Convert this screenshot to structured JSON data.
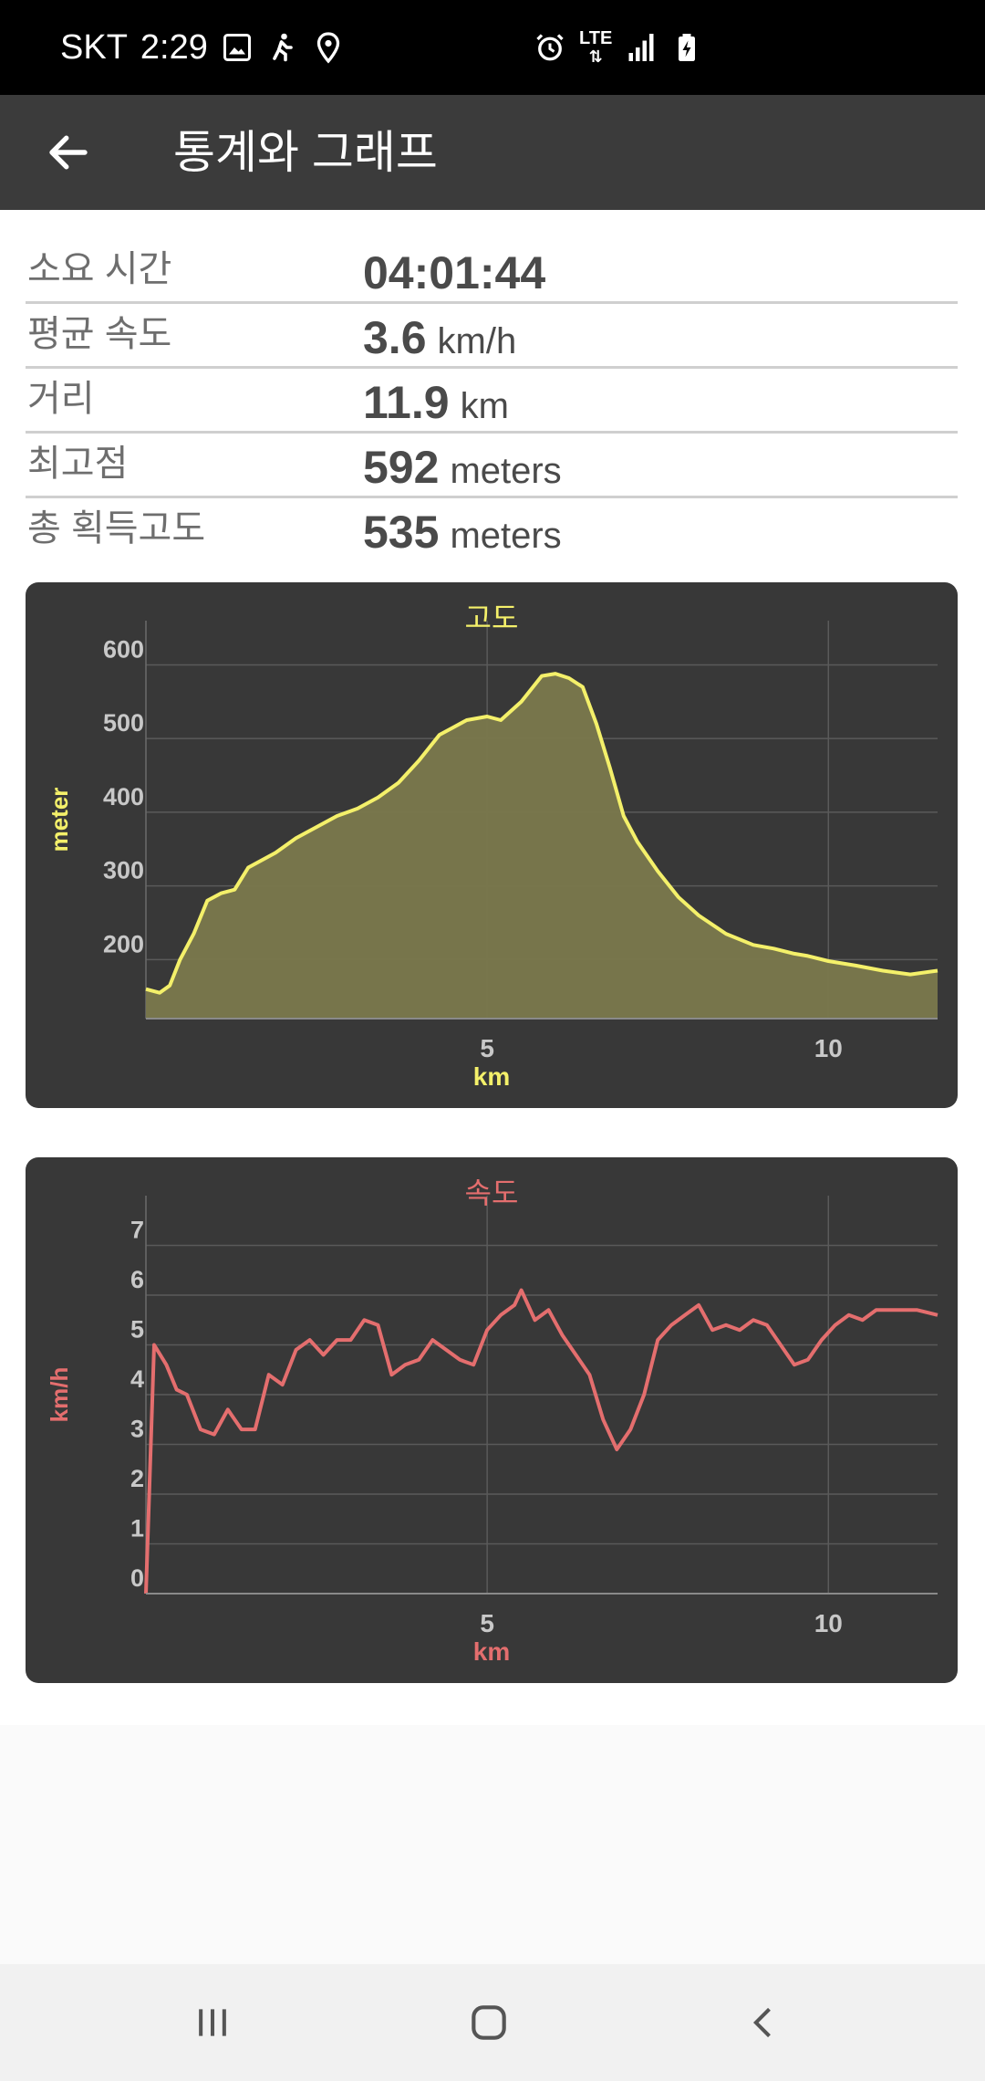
{
  "status_bar": {
    "carrier": "SKT",
    "time": "2:29",
    "network": "LTE",
    "left_icons": [
      "gallery-icon",
      "hiking-icon",
      "location-pin-icon"
    ],
    "right_icons": [
      "alarm-icon",
      "lte-icon",
      "signal-icon",
      "battery-charging-icon"
    ]
  },
  "app_bar": {
    "title": "통계와 그래프",
    "back_icon": "arrow-left-icon"
  },
  "stats": [
    {
      "label": "소요 시간",
      "value": "04:01:44",
      "unit": ""
    },
    {
      "label": "평균 속도",
      "value": "3.6",
      "unit": "km/h"
    },
    {
      "label": "거리",
      "value": "11.9",
      "unit": "km"
    },
    {
      "label": "최고점",
      "value": "592",
      "unit": "meters"
    },
    {
      "label": "총 획득고도",
      "value": "535",
      "unit": "meters"
    }
  ],
  "chart_data": [
    {
      "type": "area",
      "title": "고도",
      "xlabel": "km",
      "ylabel": "meter",
      "xlim": [
        0,
        11.6
      ],
      "ylim": [
        120,
        660
      ],
      "xticks": [
        5,
        10
      ],
      "yticks": [
        200,
        300,
        400,
        500,
        600
      ],
      "grid": true,
      "line_color": "#f4f06a",
      "fill_color": "#7a784c",
      "title_color": "#f4f06a",
      "x": [
        0,
        0.2,
        0.35,
        0.5,
        0.7,
        0.9,
        1.1,
        1.3,
        1.5,
        1.7,
        1.9,
        2.2,
        2.5,
        2.8,
        3.1,
        3.4,
        3.7,
        4.0,
        4.3,
        4.5,
        4.7,
        5.0,
        5.2,
        5.5,
        5.8,
        6.0,
        6.2,
        6.4,
        6.6,
        6.8,
        7.0,
        7.2,
        7.5,
        7.8,
        8.1,
        8.5,
        8.9,
        9.2,
        9.5,
        9.7,
        10.0,
        10.4,
        10.8,
        11.2,
        11.6
      ],
      "y": [
        160,
        155,
        165,
        200,
        235,
        280,
        290,
        295,
        325,
        335,
        345,
        365,
        380,
        395,
        405,
        420,
        440,
        470,
        505,
        515,
        525,
        530,
        525,
        550,
        585,
        588,
        582,
        570,
        520,
        460,
        395,
        360,
        320,
        285,
        260,
        235,
        220,
        215,
        208,
        205,
        198,
        192,
        185,
        180,
        185
      ]
    },
    {
      "type": "line",
      "title": "속도",
      "xlabel": "km",
      "ylabel": "km/h",
      "xlim": [
        0,
        11.6
      ],
      "ylim": [
        0,
        8
      ],
      "xticks": [
        5,
        10
      ],
      "yticks": [
        0,
        1,
        2,
        3,
        4,
        5,
        6,
        7
      ],
      "grid": true,
      "line_color": "#e46e6e",
      "title_color": "#e46e6e",
      "x": [
        0,
        0.12,
        0.3,
        0.45,
        0.6,
        0.8,
        1.0,
        1.2,
        1.4,
        1.6,
        1.8,
        2.0,
        2.2,
        2.4,
        2.6,
        2.8,
        3.0,
        3.2,
        3.4,
        3.6,
        3.8,
        4.0,
        4.2,
        4.4,
        4.6,
        4.8,
        5.0,
        5.2,
        5.4,
        5.5,
        5.7,
        5.9,
        6.1,
        6.3,
        6.5,
        6.7,
        6.9,
        7.1,
        7.3,
        7.5,
        7.7,
        7.9,
        8.1,
        8.3,
        8.5,
        8.7,
        8.9,
        9.1,
        9.3,
        9.5,
        9.7,
        9.9,
        10.1,
        10.3,
        10.5,
        10.7,
        10.9,
        11.1,
        11.3,
        11.6
      ],
      "y": [
        0,
        5.0,
        4.6,
        4.1,
        4.0,
        3.3,
        3.2,
        3.7,
        3.3,
        3.3,
        4.4,
        4.2,
        4.9,
        5.1,
        4.8,
        5.1,
        5.1,
        5.5,
        5.4,
        4.4,
        4.6,
        4.7,
        5.1,
        4.9,
        4.7,
        4.6,
        5.3,
        5.6,
        5.8,
        6.1,
        5.5,
        5.7,
        5.2,
        4.8,
        4.4,
        3.5,
        2.9,
        3.3,
        4.0,
        5.1,
        5.4,
        5.6,
        5.8,
        5.3,
        5.4,
        5.3,
        5.5,
        5.4,
        5.0,
        4.6,
        4.7,
        5.1,
        5.4,
        5.6,
        5.5,
        5.7,
        5.7,
        5.7,
        5.7,
        5.6
      ]
    }
  ],
  "nav_bar": {
    "icons": [
      "recents-icon",
      "home-icon",
      "back-icon"
    ]
  }
}
